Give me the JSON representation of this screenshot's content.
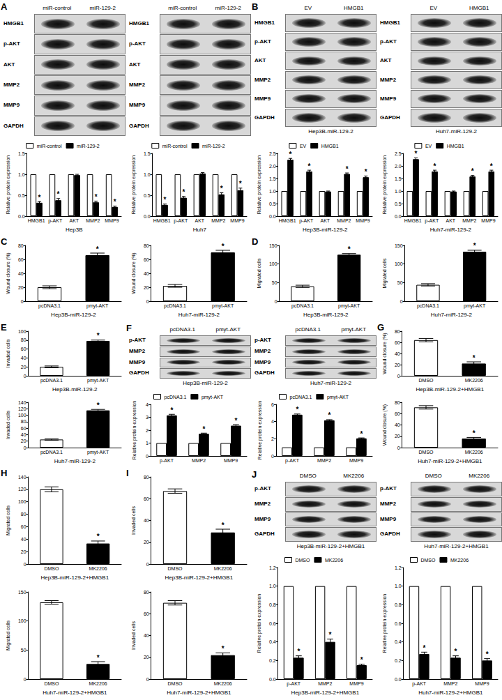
{
  "chart_data": [
    {
      "panel": "A",
      "type": "bar",
      "ylabel": "Relative protein expression",
      "xlabel": "Hep3B",
      "categories": [
        "HMGB1",
        "p-AKT",
        "AKT",
        "MMP2",
        "MMP9"
      ],
      "series": [
        {
          "name": "miR-control",
          "color": "#ffffff",
          "values": [
            1,
            1,
            1,
            1,
            1
          ]
        },
        {
          "name": "miR-129-2",
          "color": "#000000",
          "values": [
            0.32,
            0.38,
            0.98,
            0.33,
            0.22
          ],
          "errors": [
            0.03,
            0.04,
            0.02,
            0.03,
            0.02
          ],
          "annotations": [
            "*",
            "*",
            null,
            "*",
            "*"
          ]
        }
      ],
      "ylim": [
        0,
        1.5
      ],
      "yticks": [
        {
          "value": 0,
          "label": "0.0"
        },
        0.5,
        {
          "value": 1,
          "label": "1.0"
        },
        1.5
      ],
      "legend": "top",
      "grid": false
    },
    {
      "panel": "A",
      "type": "bar",
      "ylabel": "Relative protein expression",
      "xlabel": "Huh7",
      "categories": [
        "HMGB1",
        "p-AKT",
        "AKT",
        "MMP2",
        "MMP9"
      ],
      "series": [
        {
          "name": "miR-control",
          "color": "#ffffff",
          "values": [
            1,
            1,
            1,
            1,
            1
          ]
        },
        {
          "name": "miR-129-2",
          "color": "#000000",
          "values": [
            0.27,
            0.44,
            1.02,
            0.52,
            0.62
          ],
          "errors": [
            0.02,
            0.03,
            0.02,
            0.04,
            0.05
          ],
          "annotations": [
            "*",
            "*",
            null,
            "*",
            "*"
          ]
        }
      ],
      "ylim": [
        0,
        1.5
      ],
      "yticks": [
        {
          "value": 0,
          "label": "0.0"
        },
        0.5,
        {
          "value": 1,
          "label": "1.0"
        },
        1.5
      ],
      "legend": "top",
      "grid": false
    },
    {
      "panel": "B",
      "type": "bar",
      "ylabel": "Relative protein expression",
      "xlabel": "Hep3B-miR-129-2",
      "categories": [
        "HMGB1",
        "p-AKT",
        "AKT",
        "MMP2",
        "MMP9"
      ],
      "series": [
        {
          "name": "EV",
          "color": "#ffffff",
          "values": [
            1,
            1,
            1,
            1,
            1
          ]
        },
        {
          "name": "HMGB1",
          "color": "#000000",
          "values": [
            2.25,
            1.78,
            0.98,
            1.68,
            1.55
          ],
          "errors": [
            0.05,
            0.05,
            0.02,
            0.04,
            0.05
          ],
          "annotations": [
            "*",
            "*",
            null,
            "*",
            "*"
          ]
        }
      ],
      "ylim": [
        0,
        2.5
      ],
      "yticks": [
        {
          "value": 0,
          "label": "0.0"
        },
        0.5,
        {
          "value": 1,
          "label": "1.0"
        },
        1.5,
        {
          "value": 2,
          "label": "2.0"
        },
        2.5
      ],
      "legend": "top",
      "grid": false
    },
    {
      "panel": "B",
      "type": "bar",
      "ylabel": "Relative protein expression",
      "xlabel": "Huh7-miR-129-2",
      "categories": [
        "HMGB1",
        "p-AKT",
        "AKT",
        "MMP2",
        "MMP9"
      ],
      "series": [
        {
          "name": "EV",
          "color": "#ffffff",
          "values": [
            1,
            1,
            1,
            1,
            1
          ]
        },
        {
          "name": "HMGB1",
          "color": "#000000",
          "values": [
            2.27,
            1.78,
            0.98,
            1.58,
            1.78
          ],
          "errors": [
            0.05,
            0.05,
            0.02,
            0.04,
            0.05
          ],
          "annotations": [
            "*",
            "*",
            null,
            "*",
            "*"
          ]
        }
      ],
      "ylim": [
        0,
        2.5
      ],
      "yticks": [
        {
          "value": 0,
          "label": "0.0"
        },
        0.5,
        {
          "value": 1,
          "label": "1.0"
        },
        1.5,
        {
          "value": 2,
          "label": "2.0"
        },
        2.5
      ],
      "legend": "top",
      "grid": false
    },
    {
      "panel": "C",
      "type": "bar",
      "ylabel": "Wound closure (%)",
      "xlabel": "Hep3B-miR-129-2",
      "categories": [
        "pcDNA3.1",
        "pmyt-AKT"
      ],
      "values": [
        20,
        66
      ],
      "errors": [
        2,
        3
      ],
      "colors": [
        "#ffffff",
        "#000000"
      ],
      "annotations": [
        null,
        "*"
      ],
      "ylim": [
        0,
        80
      ],
      "yticks": [
        0,
        20,
        40,
        60,
        80
      ],
      "grid": false
    },
    {
      "panel": "C",
      "type": "bar",
      "ylabel": "Wound closure (%)",
      "xlabel": "Huh7-miR-129-2",
      "categories": [
        "pcDNA3.1",
        "pmyt-AKT"
      ],
      "values": [
        22,
        70
      ],
      "errors": [
        2,
        3
      ],
      "colors": [
        "#ffffff",
        "#000000"
      ],
      "annotations": [
        null,
        "*"
      ],
      "ylim": [
        0,
        80
      ],
      "yticks": [
        0,
        20,
        40,
        60,
        80
      ],
      "grid": false
    },
    {
      "panel": "D",
      "type": "bar",
      "ylabel": "Migrated cells",
      "xlabel": "Hep3B-miR-129-2",
      "categories": [
        "pcDNA3.1",
        "pmyt-AKT"
      ],
      "values": [
        40,
        125
      ],
      "errors": [
        3,
        3
      ],
      "colors": [
        "#ffffff",
        "#000000"
      ],
      "annotations": [
        null,
        "*"
      ],
      "ylim": [
        0,
        150
      ],
      "yticks": [
        0,
        50,
        100,
        150
      ],
      "grid": false
    },
    {
      "panel": "D",
      "type": "bar",
      "ylabel": "Migrated cells",
      "xlabel": "Huh7-miR-129-2",
      "categories": [
        "pcDNA3.1",
        "pmyt-AKT"
      ],
      "values": [
        44,
        133
      ],
      "errors": [
        3,
        4
      ],
      "colors": [
        "#ffffff",
        "#000000"
      ],
      "annotations": [
        null,
        "*"
      ],
      "ylim": [
        0,
        150
      ],
      "yticks": [
        0,
        50,
        100,
        150
      ],
      "grid": false
    },
    {
      "panel": "E",
      "type": "bar",
      "ylabel": "Invaded cells",
      "xlabel": "Hep3B-miR-129-2",
      "categories": [
        "pcDNA3.1",
        "pmyt-AKT"
      ],
      "values": [
        20,
        78
      ],
      "errors": [
        2,
        2
      ],
      "colors": [
        "#ffffff",
        "#000000"
      ],
      "annotations": [
        null,
        "*"
      ],
      "ylim": [
        0,
        100
      ],
      "yticks": [
        0,
        20,
        40,
        60,
        80,
        100
      ],
      "grid": false
    },
    {
      "panel": "E",
      "type": "bar",
      "ylabel": "Invaded cells",
      "xlabel": "Huh7-miR-129-2",
      "categories": [
        "pcDNA3.1",
        "pmyt-AKT"
      ],
      "values": [
        25,
        115
      ],
      "errors": [
        2,
        3
      ],
      "colors": [
        "#ffffff",
        "#000000"
      ],
      "annotations": [
        null,
        "*"
      ],
      "ylim": [
        0,
        140
      ],
      "yticks": [
        0,
        20,
        40,
        60,
        80,
        100,
        120,
        140
      ],
      "grid": false
    },
    {
      "panel": "F",
      "type": "bar",
      "ylabel": "Relative protein expression",
      "categories": [
        "p-AKT",
        "MMP2",
        "MMP9"
      ],
      "series": [
        {
          "name": "pcDNA3.1",
          "color": "#ffffff",
          "values": [
            1,
            1,
            1
          ]
        },
        {
          "name": "pmyt-AKT",
          "color": "#000000",
          "values": [
            3.15,
            1.72,
            2.35
          ],
          "errors": [
            0.08,
            0.05,
            0.08
          ],
          "annotations": [
            "*",
            "*",
            "*"
          ]
        }
      ],
      "ylim": [
        0,
        4
      ],
      "yticks": [
        0,
        1,
        2,
        3,
        4
      ],
      "legend": "top",
      "grid": false
    },
    {
      "panel": "F",
      "type": "bar",
      "ylabel": "Relative protein expression",
      "categories": [
        "p-AKT",
        "MMP2",
        "MMP9"
      ],
      "series": [
        {
          "name": "pcDNA3.1",
          "color": "#ffffff",
          "values": [
            1,
            1,
            1
          ]
        },
        {
          "name": "pmyt-AKT",
          "color": "#000000",
          "values": [
            4.8,
            4.15,
            2.05
          ],
          "errors": [
            0.08,
            0.07,
            0.05
          ],
          "annotations": [
            "*",
            "*",
            "*"
          ]
        }
      ],
      "ylim": [
        0,
        6
      ],
      "yticks": [
        0,
        2,
        4,
        6
      ],
      "legend": "top",
      "grid": false
    },
    {
      "panel": "G",
      "type": "bar",
      "ylabel": "Wound closure (%)",
      "xlabel": "Hep3B-miR-129-2+HMGB1",
      "categories": [
        "DMSO",
        "MK2206"
      ],
      "values": [
        64,
        22
      ],
      "errors": [
        3,
        3
      ],
      "colors": [
        "#ffffff",
        "#000000"
      ],
      "annotations": [
        null,
        "*"
      ],
      "ylim": [
        0,
        80
      ],
      "yticks": [
        0,
        20,
        40,
        60,
        80
      ],
      "grid": false
    },
    {
      "panel": "G",
      "type": "bar",
      "ylabel": "Wound closure (%)",
      "xlabel": "Huh7-miR-129-2+HMGB1",
      "categories": [
        "DMSO",
        "MK2206"
      ],
      "values": [
        71,
        16
      ],
      "errors": [
        3,
        2
      ],
      "colors": [
        "#ffffff",
        "#000000"
      ],
      "annotations": [
        null,
        "*"
      ],
      "ylim": [
        0,
        80
      ],
      "yticks": [
        0,
        20,
        40,
        60,
        80
      ],
      "grid": false
    },
    {
      "panel": "H",
      "type": "bar",
      "ylabel": "Migrated cells",
      "xlabel": "Hep3B-miR-129-2+HMGB1",
      "categories": [
        "DMSO",
        "MK2206"
      ],
      "values": [
        120,
        33
      ],
      "errors": [
        4,
        4
      ],
      "colors": [
        "#ffffff",
        "#000000"
      ],
      "annotations": [
        null,
        "*"
      ],
      "ylim": [
        0,
        140
      ],
      "yticks": [
        0,
        20,
        40,
        60,
        80,
        100,
        120,
        140
      ],
      "grid": false
    },
    {
      "panel": "H",
      "type": "bar",
      "ylabel": "Migrated cells",
      "xlabel": "Huh7-miR-129-2+HMGB1",
      "categories": [
        "DMSO",
        "MK2206"
      ],
      "values": [
        132,
        26
      ],
      "errors": [
        3,
        4
      ],
      "colors": [
        "#ffffff",
        "#000000"
      ],
      "annotations": [
        null,
        "*"
      ],
      "ylim": [
        0,
        150
      ],
      "yticks": [
        0,
        50,
        100,
        150
      ],
      "grid": false
    },
    {
      "panel": "I",
      "type": "bar",
      "ylabel": "Invaded cells",
      "xlabel": "Hep3B-miR-129-2+HMGB1",
      "categories": [
        "DMSO",
        "MK2206"
      ],
      "values": [
        67,
        29
      ],
      "errors": [
        2,
        3
      ],
      "colors": [
        "#ffffff",
        "#000000"
      ],
      "annotations": [
        null,
        "*"
      ],
      "ylim": [
        0,
        80
      ],
      "yticks": [
        0,
        20,
        40,
        60,
        80
      ],
      "grid": false
    },
    {
      "panel": "I",
      "type": "bar",
      "ylabel": "Invaded cells",
      "xlabel": "Huh7-miR-129-2+HMGB1",
      "categories": [
        "DMSO",
        "MK2206"
      ],
      "values": [
        70,
        22
      ],
      "errors": [
        2,
        2
      ],
      "colors": [
        "#ffffff",
        "#000000"
      ],
      "annotations": [
        null,
        "*"
      ],
      "ylim": [
        0,
        80
      ],
      "yticks": [
        0,
        20,
        40,
        60,
        80
      ],
      "grid": false
    },
    {
      "panel": "J",
      "type": "bar",
      "ylabel": "Relative protein expression",
      "xlabel": "Hep3B-miR-129-2+HMGB1",
      "categories": [
        "p-AKT",
        "MMP2",
        "MMP9"
      ],
      "series": [
        {
          "name": "DMSO",
          "color": "#ffffff",
          "values": [
            1,
            1,
            1
          ]
        },
        {
          "name": "MK2206",
          "color": "#000000",
          "values": [
            0.23,
            0.4,
            0.15
          ],
          "errors": [
            0.02,
            0.03,
            0.01
          ],
          "annotations": [
            "*",
            "*",
            "*"
          ]
        }
      ],
      "ylim": [
        0,
        1.2
      ],
      "yticks": [
        {
          "value": 0,
          "label": "0.0"
        },
        0.2,
        0.4,
        0.6,
        0.8,
        {
          "value": 1,
          "label": "1.0"
        },
        1.2
      ],
      "legend": "top",
      "grid": false
    },
    {
      "panel": "J",
      "type": "bar",
      "ylabel": "Relative protein expression",
      "xlabel": "Huh7-miR-129-2+HMGB1",
      "categories": [
        "p-AKT",
        "MMP2",
        "MMP9"
      ],
      "series": [
        {
          "name": "DMSO",
          "color": "#ffffff",
          "values": [
            1,
            1,
            1
          ]
        },
        {
          "name": "MK2206",
          "color": "#000000",
          "values": [
            0.27,
            0.23,
            0.2
          ],
          "errors": [
            0.02,
            0.02,
            0.02
          ],
          "annotations": [
            "*",
            "*",
            "*"
          ]
        }
      ],
      "ylim": [
        0,
        1.2
      ],
      "yticks": [
        {
          "value": 0,
          "label": "0.0"
        },
        0.2,
        0.4,
        0.6,
        0.8,
        {
          "value": 1,
          "label": "1.0"
        },
        1.2
      ],
      "legend": "top",
      "grid": false
    }
  ],
  "blots": [
    {
      "panel": "A",
      "lanes": [
        "miR-control",
        "miR-129-2"
      ],
      "rows": [
        "HMGB1",
        "p-AKT",
        "AKT",
        "MMP2",
        "MMP9",
        "GAPDH"
      ]
    },
    {
      "panel": "A",
      "lanes": [
        "miR-control",
        "miR-129-2"
      ],
      "rows": [
        "HMGB1",
        "p-AKT",
        "AKT",
        "MMP2",
        "MMP9",
        "GAPDH"
      ]
    },
    {
      "panel": "B",
      "lanes": [
        "EV",
        "HMGB1"
      ],
      "rows": [
        "HMGB1",
        "p-AKT",
        "AKT",
        "MMP2",
        "MMP9",
        "GAPDH"
      ],
      "caption": "Hep3B-miR-129-2"
    },
    {
      "panel": "B",
      "lanes": [
        "EV",
        "HMGB1"
      ],
      "rows": [
        "HMGB1",
        "p-AKT",
        "AKT",
        "MMP2",
        "MMP9",
        "GAPDH"
      ],
      "caption": "Huh7-miR-129-2"
    },
    {
      "panel": "F",
      "lanes": [
        "pcDNA3.1",
        "pmyt-AKT"
      ],
      "rows": [
        "p-AKT",
        "MMP2",
        "MMP9",
        "GAPDH"
      ],
      "caption": "Hep3B-miR-129-2"
    },
    {
      "panel": "F",
      "lanes": [
        "pcDNA3.1",
        "pmyt-AKT"
      ],
      "rows": [
        "p-AKT",
        "MMP2",
        "MMP9",
        "GAPDH"
      ],
      "caption": "Huh7-miR-129-2"
    },
    {
      "panel": "J",
      "lanes": [
        "DMSO",
        "MK2206"
      ],
      "rows": [
        "p-AKT",
        "MMP2",
        "MMP9",
        "GAPDH"
      ],
      "caption": "Hep3B-miR-129-2+HMGB1"
    },
    {
      "panel": "J",
      "lanes": [
        "DMSO",
        "MK2206"
      ],
      "rows": [
        "p-AKT",
        "MMP2",
        "MMP9",
        "GAPDH"
      ],
      "caption": "Huh7-miR-129-2+HMGB1"
    }
  ]
}
